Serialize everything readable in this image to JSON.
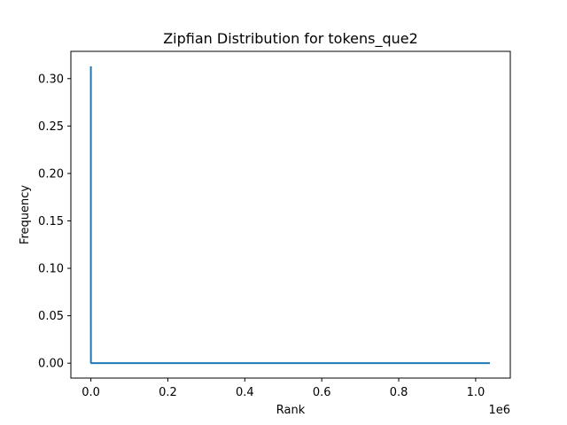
{
  "chart_data": {
    "type": "line",
    "title": "Zipfian Distribution for tokens_que2",
    "xlabel": "Rank",
    "ylabel": "Frequency",
    "x_offset_label": "1e6",
    "xlim": [
      -0.052,
      1.09
    ],
    "ylim": [
      -0.0157,
      0.3287
    ],
    "x_ticks": [
      0.0,
      0.2,
      0.4,
      0.6,
      0.8,
      1.0
    ],
    "x_tick_labels": [
      "0.0",
      "0.2",
      "0.4",
      "0.6",
      "0.8",
      "1.0"
    ],
    "y_ticks": [
      0.0,
      0.05,
      0.1,
      0.15,
      0.2,
      0.25,
      0.3
    ],
    "y_tick_labels": [
      "0.00",
      "0.05",
      "0.10",
      "0.15",
      "0.20",
      "0.25",
      "0.30"
    ],
    "grid": false,
    "series": [
      {
        "color": "#1f77b4",
        "x": [
          0.0,
          0.0,
          0.0001,
          0.001,
          0.01,
          0.1,
          0.5,
          1.037
        ],
        "y": [
          0.313,
          0.05,
          0.0005,
          0.0001,
          2e-05,
          0.0,
          0.0,
          0.0
        ]
      }
    ]
  }
}
